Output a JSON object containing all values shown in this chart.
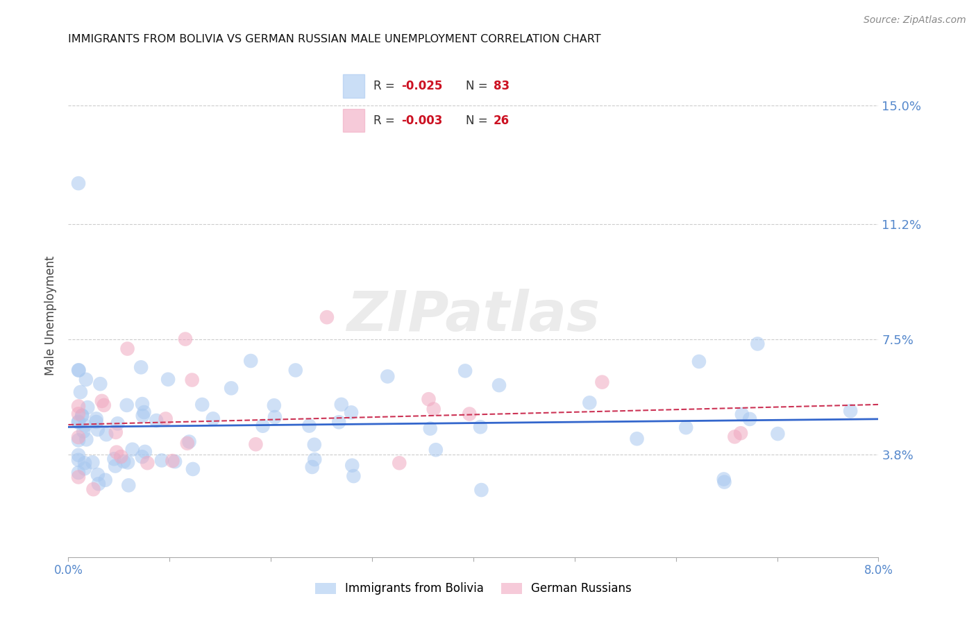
{
  "title": "IMMIGRANTS FROM BOLIVIA VS GERMAN RUSSIAN MALE UNEMPLOYMENT CORRELATION CHART",
  "source": "Source: ZipAtlas.com",
  "ylabel": "Male Unemployment",
  "yticks": [
    0.038,
    0.075,
    0.112,
    0.15
  ],
  "ytick_labels": [
    "3.8%",
    "7.5%",
    "11.2%",
    "15.0%"
  ],
  "xmin": 0.0,
  "xmax": 0.08,
  "ymin": 0.005,
  "ymax": 0.16,
  "legend_r1": "-0.025",
  "legend_n1": "83",
  "legend_r2": "-0.003",
  "legend_n2": "26",
  "color_bolivia": "#a8c8f0",
  "color_german": "#f0a8c0",
  "color_line_bolivia": "#3366cc",
  "color_line_german": "#cc3355",
  "watermark": "ZIPatlas",
  "bolivia_seed": 42,
  "german_seed": 99
}
